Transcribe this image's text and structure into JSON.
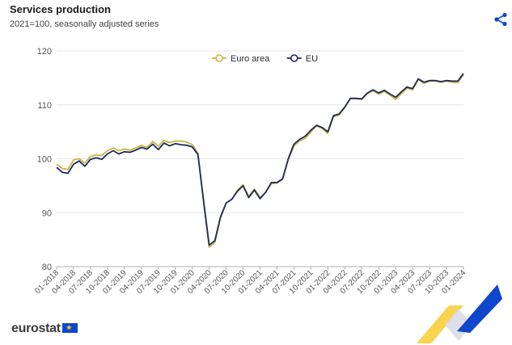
{
  "header": {
    "title": "Services production",
    "subtitle": "2021=100, seasonally adjusted series",
    "share_icon": "share-icon"
  },
  "footer": {
    "logo_text": "eurostat",
    "logo_flag_icon": "eu-flag-icon"
  },
  "colors": {
    "euro_area": "#c9b53f",
    "eu": "#1e2a5a",
    "grid": "#e6e6e6",
    "accent_blue": "#0e47cb",
    "accent_yellow": "#f6cb2f"
  },
  "chart_data": {
    "type": "line",
    "title": "Services production",
    "subtitle": "2021=100, seasonally adjusted series",
    "xlabel": "",
    "ylabel": "",
    "ylim": [
      80,
      120
    ],
    "yticks": [
      80,
      90,
      100,
      110,
      120
    ],
    "grid": true,
    "legend": "top-center",
    "xticks": [
      "01-2018",
      "04-2018",
      "07-2018",
      "10-2018",
      "01-2019",
      "04-2019",
      "07-2019",
      "10-2019",
      "01-2020",
      "04-2020",
      "07-2020",
      "10-2020",
      "01-2021",
      "04-2021",
      "07-2021",
      "10-2021",
      "01-2022",
      "04-2022",
      "07-2022",
      "10-2022",
      "01-2023",
      "04-2023",
      "07-2023",
      "10-2023",
      "01-2024"
    ],
    "x_start": "01-2018",
    "x_end": "01-2024",
    "series": [
      {
        "name": "Euro area",
        "color": "#c9b53f",
        "values": [
          99.0,
          98.2,
          98.0,
          99.8,
          100.0,
          99.2,
          100.4,
          100.7,
          100.6,
          101.5,
          102.0,
          101.5,
          101.8,
          101.6,
          102.0,
          102.5,
          102.1,
          103.2,
          102.3,
          103.4,
          103.0,
          103.3,
          103.3,
          103.1,
          102.6,
          101.0,
          92.0,
          83.6,
          84.5,
          89.0,
          91.8,
          92.5,
          94.2,
          95.2,
          93.0,
          94.4,
          92.8,
          93.8,
          95.4,
          95.5,
          96.2,
          99.8,
          102.4,
          103.3,
          103.8,
          105.0,
          106.1,
          105.6,
          104.7,
          107.8,
          108.1,
          109.5,
          111.2,
          111.1,
          111.0,
          112.1,
          112.6,
          112.0,
          112.5,
          111.8,
          111.0,
          112.1,
          113.1,
          112.8,
          114.7,
          114.0,
          114.4,
          114.4,
          114.2,
          114.4,
          114.2,
          114.1,
          115.6
        ]
      },
      {
        "name": "EU",
        "color": "#1e2a5a",
        "values": [
          98.4,
          97.5,
          97.3,
          99.0,
          99.6,
          98.6,
          99.9,
          100.2,
          99.9,
          100.9,
          101.5,
          100.9,
          101.3,
          101.2,
          101.6,
          102.1,
          101.8,
          102.7,
          101.7,
          102.9,
          102.4,
          102.8,
          102.6,
          102.5,
          102.2,
          100.8,
          92.3,
          84.0,
          84.8,
          89.2,
          91.8,
          92.5,
          94.0,
          95.0,
          92.8,
          94.2,
          92.6,
          93.8,
          95.6,
          95.6,
          96.3,
          100.0,
          102.7,
          103.6,
          104.2,
          105.3,
          106.2,
          105.8,
          105.0,
          108.0,
          108.3,
          109.6,
          111.2,
          111.2,
          111.1,
          112.2,
          112.8,
          112.2,
          112.7,
          112.0,
          111.4,
          112.4,
          113.3,
          113.0,
          114.8,
          114.2,
          114.5,
          114.5,
          114.3,
          114.5,
          114.4,
          114.4,
          115.8
        ]
      }
    ]
  }
}
